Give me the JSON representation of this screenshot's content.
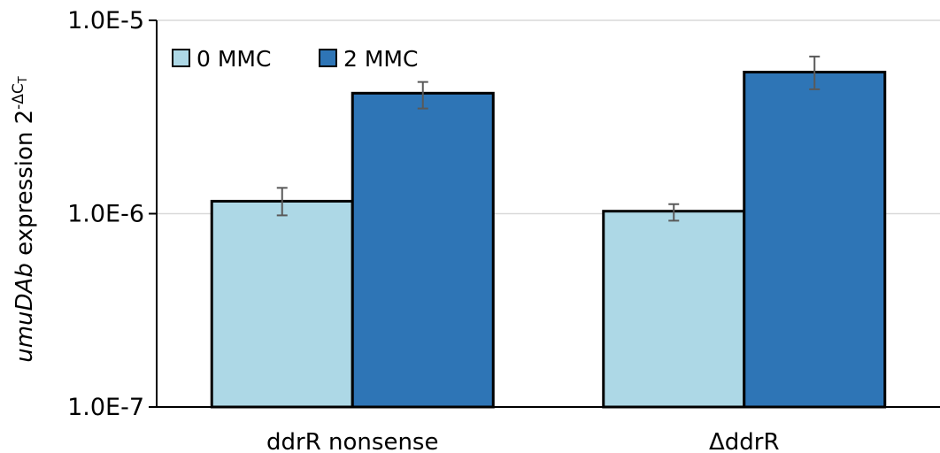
{
  "chart_data": {
    "type": "bar",
    "y_scale": "log",
    "ylim": [
      1e-07,
      1e-05
    ],
    "y_ticks": [
      1e-07,
      1e-06,
      1e-05
    ],
    "y_tick_labels": [
      "1.0E-7",
      "1.0E-6",
      "1.0E-5"
    ],
    "grid": true,
    "legend_position": "top-left",
    "ylabel": {
      "italic_part": "umuDAb",
      "plain_part": " expression 2",
      "superscript": "-ΔC",
      "subscript": "T"
    },
    "categories": [
      "ddrR nonsense",
      "ΔddrR"
    ],
    "series": [
      {
        "name": "0 MMC",
        "color": "#add8e6",
        "values": [
          1.16e-06,
          1.03e-06
        ],
        "error_low": [
          9.8e-07,
          9.2e-07
        ],
        "error_high": [
          1.36e-06,
          1.12e-06
        ]
      },
      {
        "name": "2 MMC",
        "color": "#2e75b6",
        "values": [
          4.2e-06,
          5.4e-06
        ],
        "error_low": [
          3.5e-06,
          4.4e-06
        ],
        "error_high": [
          4.8e-06,
          6.5e-06
        ]
      }
    ]
  }
}
